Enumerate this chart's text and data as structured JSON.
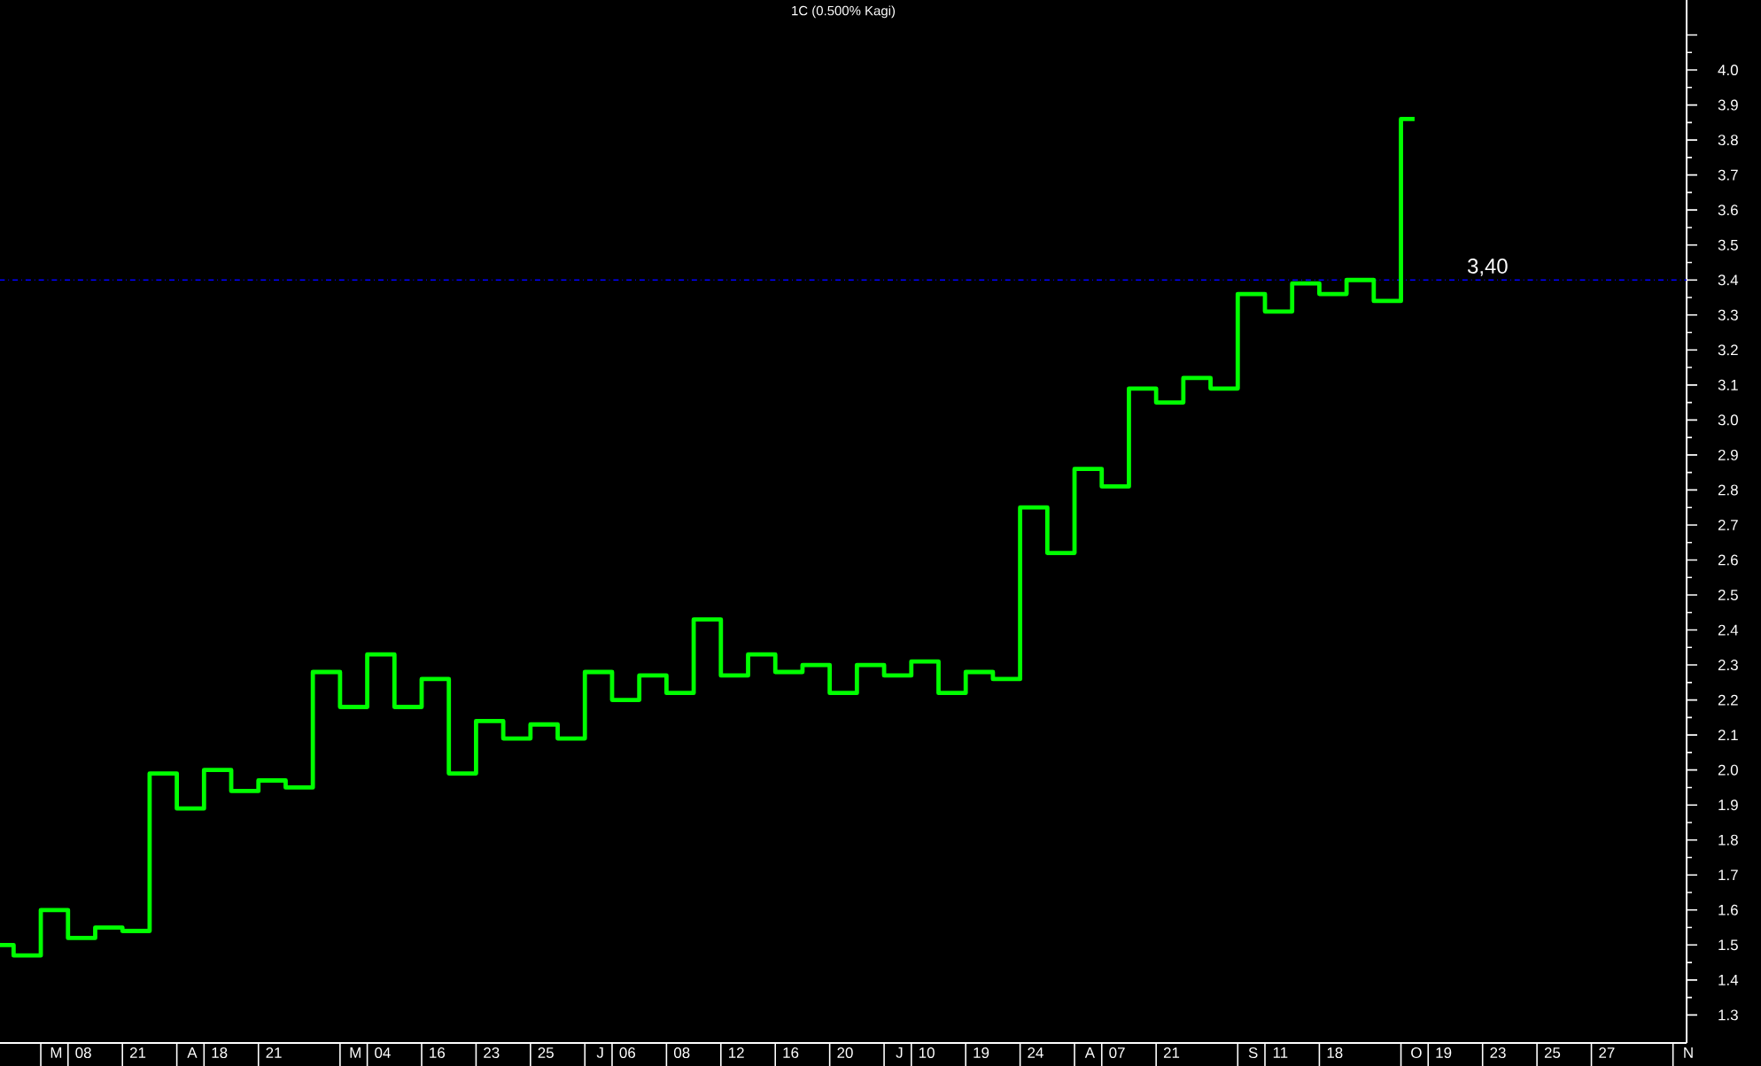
{
  "chart_data": {
    "type": "step",
    "title": "1C (0.500% Kagi)",
    "ylim": [
      1.22,
      4.2
    ],
    "categories": [
      null,
      null,
      "M",
      "08",
      null,
      "21",
      null,
      "A",
      "18",
      null,
      "21",
      null,
      null,
      "M",
      "04",
      null,
      "16",
      null,
      "23",
      null,
      "25",
      null,
      "J",
      "06",
      null,
      "08",
      null,
      "12",
      null,
      "16",
      null,
      "20",
      null,
      "J",
      "10",
      null,
      "19",
      null,
      "24",
      null,
      "A",
      "07",
      null,
      "21",
      null,
      null,
      "S",
      "11",
      null,
      "18",
      null,
      null,
      "O",
      "19",
      null,
      "23",
      null,
      "25",
      null,
      "27",
      null,
      null,
      "N"
    ],
    "yticks": [
      1.3,
      1.4,
      1.5,
      1.6,
      1.7,
      1.8,
      1.9,
      {
        "value": 2.0,
        "label": "2.0"
      },
      2.1,
      2.2,
      2.3,
      2.4,
      2.5,
      2.6,
      2.7,
      2.8,
      2.9,
      {
        "value": 3.0,
        "label": "3.0"
      },
      3.1,
      3.2,
      3.3,
      3.4,
      3.5,
      3.6,
      3.7,
      3.8,
      3.9,
      {
        "value": 4.0,
        "label": "4.0"
      },
      {
        "value": 4.1,
        "label": null
      }
    ],
    "marker": "none",
    "line_style": "solid",
    "grid": false,
    "legend": false,
    "ref_lines": [
      {
        "axis": "y",
        "value": 3.4,
        "label": "3,40",
        "color": "#0000ff",
        "line_style": "dashdot"
      }
    ],
    "series": [
      {
        "color": "#00ff00",
        "values": [
          1.5,
          1.47,
          1.6,
          1.52,
          1.55,
          1.54,
          1.99,
          1.89,
          2.0,
          1.94,
          1.97,
          1.95,
          2.28,
          2.18,
          2.33,
          2.18,
          2.26,
          1.99,
          2.14,
          2.09,
          2.13,
          2.09,
          2.28,
          2.2,
          2.27,
          2.22,
          2.43,
          2.27,
          2.33,
          2.28,
          2.3,
          2.22,
          2.3,
          2.27,
          2.31,
          2.22,
          2.28,
          2.26,
          2.75,
          2.62,
          2.86,
          2.81,
          3.09,
          3.05,
          3.12,
          3.09,
          3.36,
          3.31,
          3.39,
          3.36,
          3.4,
          3.34,
          3.86,
          null,
          null,
          null,
          null,
          null,
          null,
          null,
          null,
          null,
          null
        ]
      }
    ]
  }
}
